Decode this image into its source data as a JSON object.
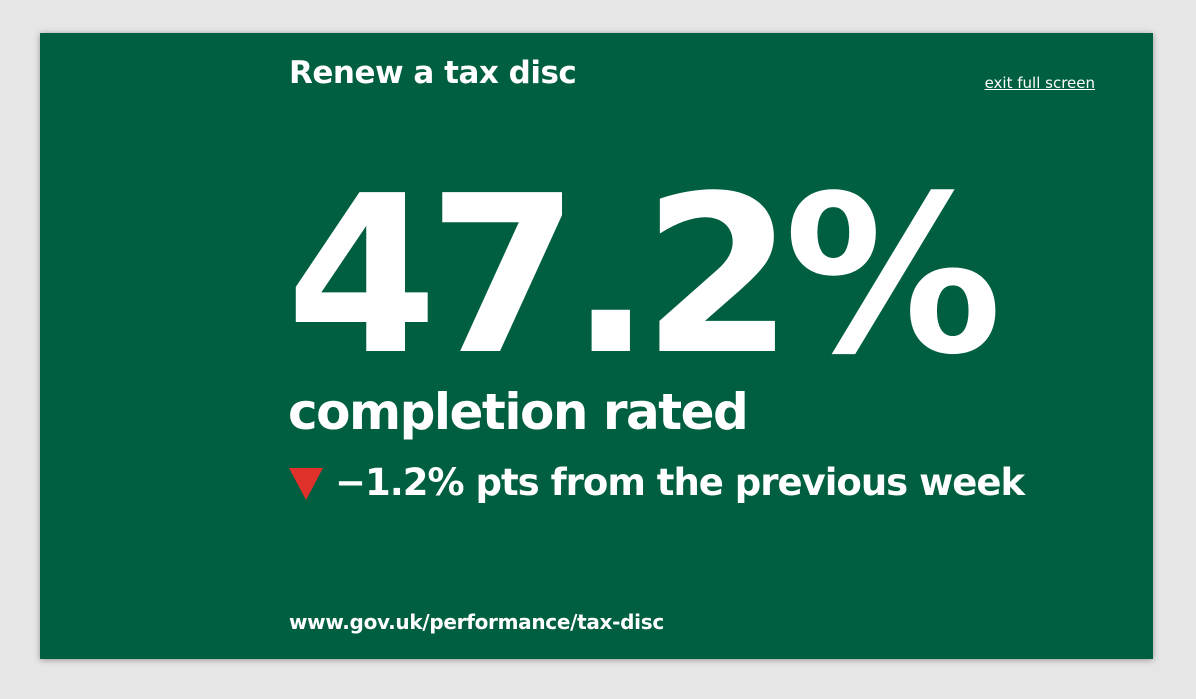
{
  "page": {
    "title": "Renew a tax disc",
    "exit_label": "exit full screen"
  },
  "metric": {
    "value": "47.2%",
    "label": "completion rated",
    "change": {
      "direction": "down",
      "icon": "down-triangle-icon",
      "text": "−1.2% pts from the previous week"
    }
  },
  "footer": {
    "url": "www.gov.uk/performance/tax-disc"
  },
  "colors": {
    "page_background": "#e6e6e6",
    "panel_background": "#005e41",
    "text": "#ffffff",
    "decrease_indicator": "#e0302a"
  }
}
